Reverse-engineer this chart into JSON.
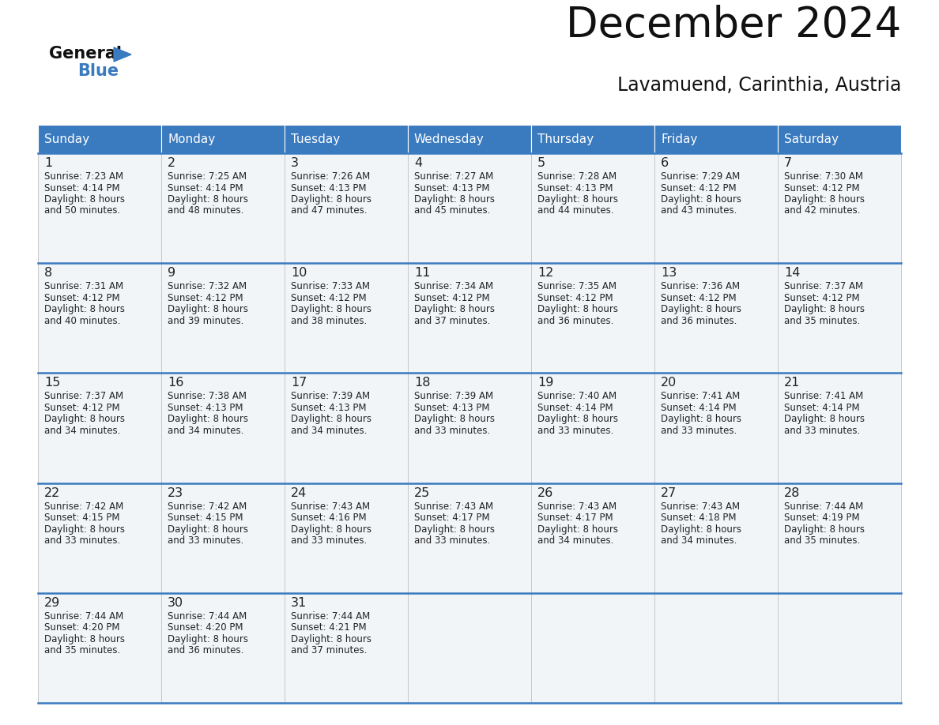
{
  "title": "December 2024",
  "subtitle": "Lavamuend, Carinthia, Austria",
  "header_color": "#3a7abf",
  "header_text_color": "#ffffff",
  "cell_bg_color": "#f2f5f8",
  "empty_cell_bg_color": "#f2f5f8",
  "border_color": "#3a7abf",
  "row_sep_color": "#3a7abf",
  "text_color": "#222222",
  "days_of_week": [
    "Sunday",
    "Monday",
    "Tuesday",
    "Wednesday",
    "Thursday",
    "Friday",
    "Saturday"
  ],
  "calendar_data": [
    [
      {
        "day": 1,
        "sunrise": "7:23 AM",
        "sunset": "4:14 PM",
        "daylight_line1": "8 hours",
        "daylight_line2": "and 50 minutes."
      },
      {
        "day": 2,
        "sunrise": "7:25 AM",
        "sunset": "4:14 PM",
        "daylight_line1": "8 hours",
        "daylight_line2": "and 48 minutes."
      },
      {
        "day": 3,
        "sunrise": "7:26 AM",
        "sunset": "4:13 PM",
        "daylight_line1": "8 hours",
        "daylight_line2": "and 47 minutes."
      },
      {
        "day": 4,
        "sunrise": "7:27 AM",
        "sunset": "4:13 PM",
        "daylight_line1": "8 hours",
        "daylight_line2": "and 45 minutes."
      },
      {
        "day": 5,
        "sunrise": "7:28 AM",
        "sunset": "4:13 PM",
        "daylight_line1": "8 hours",
        "daylight_line2": "and 44 minutes."
      },
      {
        "day": 6,
        "sunrise": "7:29 AM",
        "sunset": "4:12 PM",
        "daylight_line1": "8 hours",
        "daylight_line2": "and 43 minutes."
      },
      {
        "day": 7,
        "sunrise": "7:30 AM",
        "sunset": "4:12 PM",
        "daylight_line1": "8 hours",
        "daylight_line2": "and 42 minutes."
      }
    ],
    [
      {
        "day": 8,
        "sunrise": "7:31 AM",
        "sunset": "4:12 PM",
        "daylight_line1": "8 hours",
        "daylight_line2": "and 40 minutes."
      },
      {
        "day": 9,
        "sunrise": "7:32 AM",
        "sunset": "4:12 PM",
        "daylight_line1": "8 hours",
        "daylight_line2": "and 39 minutes."
      },
      {
        "day": 10,
        "sunrise": "7:33 AM",
        "sunset": "4:12 PM",
        "daylight_line1": "8 hours",
        "daylight_line2": "and 38 minutes."
      },
      {
        "day": 11,
        "sunrise": "7:34 AM",
        "sunset": "4:12 PM",
        "daylight_line1": "8 hours",
        "daylight_line2": "and 37 minutes."
      },
      {
        "day": 12,
        "sunrise": "7:35 AM",
        "sunset": "4:12 PM",
        "daylight_line1": "8 hours",
        "daylight_line2": "and 36 minutes."
      },
      {
        "day": 13,
        "sunrise": "7:36 AM",
        "sunset": "4:12 PM",
        "daylight_line1": "8 hours",
        "daylight_line2": "and 36 minutes."
      },
      {
        "day": 14,
        "sunrise": "7:37 AM",
        "sunset": "4:12 PM",
        "daylight_line1": "8 hours",
        "daylight_line2": "and 35 minutes."
      }
    ],
    [
      {
        "day": 15,
        "sunrise": "7:37 AM",
        "sunset": "4:12 PM",
        "daylight_line1": "8 hours",
        "daylight_line2": "and 34 minutes."
      },
      {
        "day": 16,
        "sunrise": "7:38 AM",
        "sunset": "4:13 PM",
        "daylight_line1": "8 hours",
        "daylight_line2": "and 34 minutes."
      },
      {
        "day": 17,
        "sunrise": "7:39 AM",
        "sunset": "4:13 PM",
        "daylight_line1": "8 hours",
        "daylight_line2": "and 34 minutes."
      },
      {
        "day": 18,
        "sunrise": "7:39 AM",
        "sunset": "4:13 PM",
        "daylight_line1": "8 hours",
        "daylight_line2": "and 33 minutes."
      },
      {
        "day": 19,
        "sunrise": "7:40 AM",
        "sunset": "4:14 PM",
        "daylight_line1": "8 hours",
        "daylight_line2": "and 33 minutes."
      },
      {
        "day": 20,
        "sunrise": "7:41 AM",
        "sunset": "4:14 PM",
        "daylight_line1": "8 hours",
        "daylight_line2": "and 33 minutes."
      },
      {
        "day": 21,
        "sunrise": "7:41 AM",
        "sunset": "4:14 PM",
        "daylight_line1": "8 hours",
        "daylight_line2": "and 33 minutes."
      }
    ],
    [
      {
        "day": 22,
        "sunrise": "7:42 AM",
        "sunset": "4:15 PM",
        "daylight_line1": "8 hours",
        "daylight_line2": "and 33 minutes."
      },
      {
        "day": 23,
        "sunrise": "7:42 AM",
        "sunset": "4:15 PM",
        "daylight_line1": "8 hours",
        "daylight_line2": "and 33 minutes."
      },
      {
        "day": 24,
        "sunrise": "7:43 AM",
        "sunset": "4:16 PM",
        "daylight_line1": "8 hours",
        "daylight_line2": "and 33 minutes."
      },
      {
        "day": 25,
        "sunrise": "7:43 AM",
        "sunset": "4:17 PM",
        "daylight_line1": "8 hours",
        "daylight_line2": "and 33 minutes."
      },
      {
        "day": 26,
        "sunrise": "7:43 AM",
        "sunset": "4:17 PM",
        "daylight_line1": "8 hours",
        "daylight_line2": "and 34 minutes."
      },
      {
        "day": 27,
        "sunrise": "7:43 AM",
        "sunset": "4:18 PM",
        "daylight_line1": "8 hours",
        "daylight_line2": "and 34 minutes."
      },
      {
        "day": 28,
        "sunrise": "7:44 AM",
        "sunset": "4:19 PM",
        "daylight_line1": "8 hours",
        "daylight_line2": "and 35 minutes."
      }
    ],
    [
      {
        "day": 29,
        "sunrise": "7:44 AM",
        "sunset": "4:20 PM",
        "daylight_line1": "8 hours",
        "daylight_line2": "and 35 minutes."
      },
      {
        "day": 30,
        "sunrise": "7:44 AM",
        "sunset": "4:20 PM",
        "daylight_line1": "8 hours",
        "daylight_line2": "and 36 minutes."
      },
      {
        "day": 31,
        "sunrise": "7:44 AM",
        "sunset": "4:21 PM",
        "daylight_line1": "8 hours",
        "daylight_line2": "and 37 minutes."
      },
      null,
      null,
      null,
      null
    ]
  ]
}
